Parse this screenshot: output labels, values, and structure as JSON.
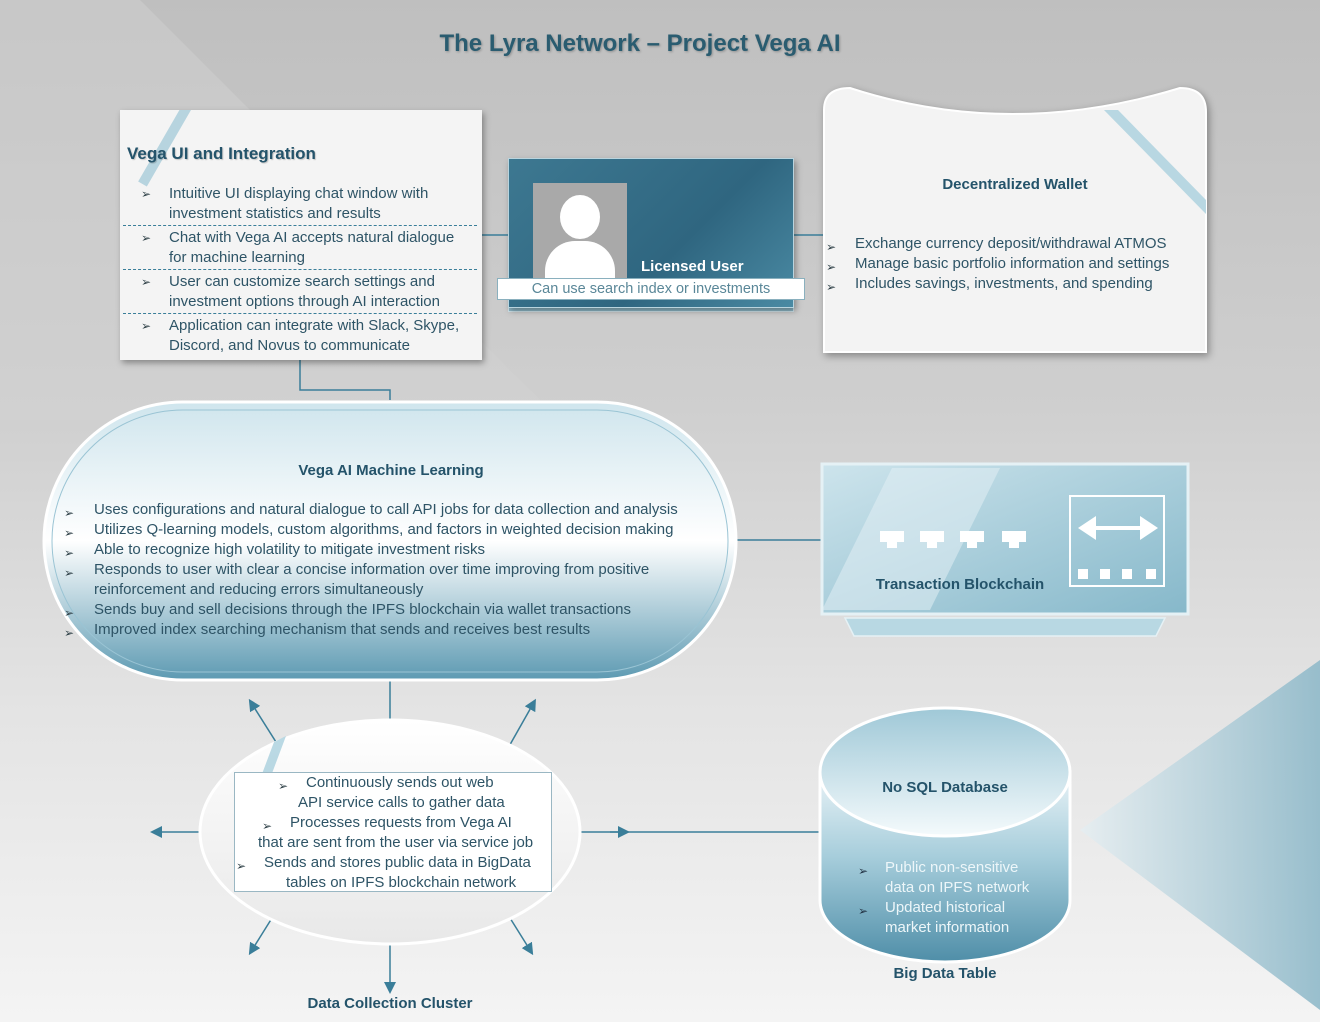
{
  "title": "The Lyra Network – Project Vega AI",
  "colors": {
    "accent": "#2a5c70",
    "teal_dark": "#2f6680",
    "teal_light": "#a9d0dd"
  },
  "vega_ui": {
    "title": "Vega UI and Integration",
    "items": [
      [
        "Intuitive UI displaying chat window with",
        "investment statistics and results"
      ],
      [
        "Chat with Vega AI accepts natural dialogue",
        "for machine learning"
      ],
      [
        "User can customize search settings and",
        "investment options through AI interaction"
      ],
      [
        "Application can integrate with Slack, Skype,",
        "Discord, and Novus to communicate"
      ]
    ]
  },
  "licensed_user": {
    "label": "Licensed User",
    "subtitle": "Can use search index or investments",
    "icon": "user-silhouette-icon"
  },
  "wallet": {
    "title": "Decentralized Wallet",
    "items": [
      "Exchange currency deposit/withdrawal ATMOS",
      "Manage basic portfolio information and settings",
      "Includes savings, investments, and spending"
    ]
  },
  "machine_learning": {
    "title": "Vega AI Machine Learning",
    "items": [
      [
        "Uses configurations and natural dialogue to call API jobs for data collection and analysis"
      ],
      [
        "Utilizes Q-learning models, custom algorithms, and factors in weighted decision making"
      ],
      [
        "Able to recognize high volatility to mitigate investment risks"
      ],
      [
        "Responds to user with clear a concise information over time improving from positive",
        "reinforcement and reducing errors simultaneously"
      ],
      [
        "Sends buy and sell decisions through the IPFS blockchain via wallet transactions"
      ],
      [
        "Improved index searching mechanism that sends and receives best results"
      ]
    ]
  },
  "blockchain": {
    "label": "Transaction Blockchain",
    "icon": "exchange-arrows-icon"
  },
  "data_collection": {
    "label": "Data Collection Cluster",
    "lines": [
      {
        "arrow": true,
        "text": "Continuously sends out web",
        "indent": 72
      },
      {
        "arrow": false,
        "text": "API service calls to gather data",
        "indent": 64
      },
      {
        "arrow": true,
        "text": "Processes requests from Vega AI",
        "indent": 56
      },
      {
        "arrow": false,
        "text": "that are sent from the user via service job",
        "indent": 24
      },
      {
        "arrow": true,
        "text": "Sends and stores public data in BigData",
        "indent": 30
      },
      {
        "arrow": false,
        "text": "tables on IPFS blockchain network",
        "indent": 52
      }
    ]
  },
  "database": {
    "title": "No SQL Database",
    "label": "Big Data Table",
    "items": [
      [
        "Public non-sensitive",
        "data on IPFS network"
      ],
      [
        "Updated historical",
        "market information"
      ]
    ]
  }
}
